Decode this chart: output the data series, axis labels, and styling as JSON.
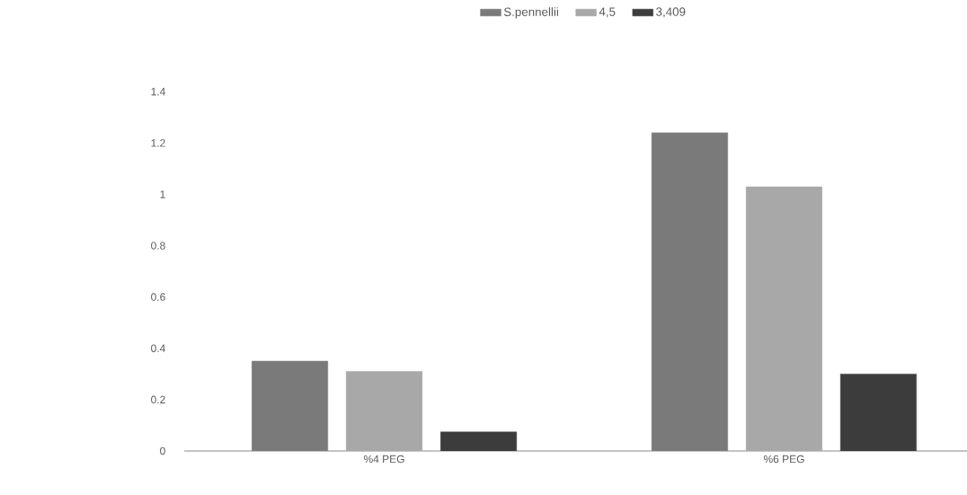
{
  "chart_data": {
    "type": "bar",
    "categories": [
      "%4 PEG",
      "%6 PEG"
    ],
    "series": [
      {
        "name": "S.pennellii",
        "color": "#7a7a7a",
        "values": [
          0.35,
          1.24
        ]
      },
      {
        "name": "4,5",
        "color": "#a8a8a8",
        "values": [
          0.31,
          1.03
        ]
      },
      {
        "name": "3,409",
        "color": "#3c3c3c",
        "values": [
          0.074,
          0.3
        ]
      }
    ],
    "ylim": [
      0,
      1.4
    ],
    "yticks": [
      0,
      0.2,
      0.4,
      0.6,
      0.8,
      1,
      1.2,
      1.4
    ],
    "grid": false,
    "legend": "top"
  }
}
